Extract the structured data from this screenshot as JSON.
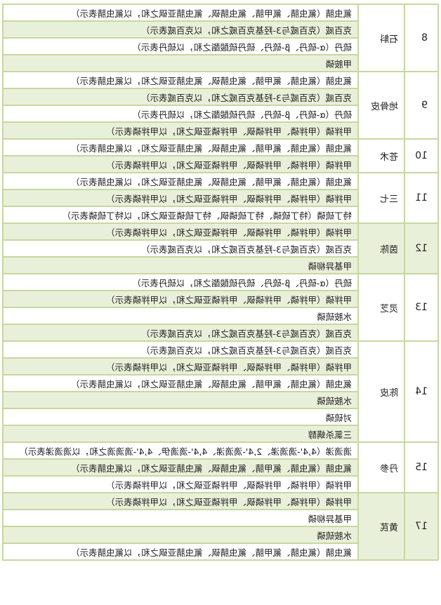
{
  "colors": {
    "stripe": "#e9f0da",
    "border": "#c6d89f"
  },
  "groups": [
    {
      "no": "8",
      "herb": "石斛",
      "items": [
        "氟虫腈（氟虫腈、氟甲腈、氟虫腈砜、氟虫腈亚砜之和，以氟虫腈表示）",
        "克百威（克百威与3-羟基克百威之和，以克百威表示）",
        "硫丹（α-硫丹、β-硫丹、硫丹硫酸酯之和，以硫丹表示）",
        "甲胺磷"
      ]
    },
    {
      "no": "9",
      "herb": "地骨皮",
      "items": [
        "氟虫腈（氟虫腈、氟甲腈、氟虫腈砜、氟虫腈亚砜之和，以氟虫腈表示）",
        "克百威（克百威与3-羟基克百威之和，以克百威表示）",
        "硫丹（α-硫丹、β-硫丹、硫丹硫酸酯之和，以硫丹表示）",
        "甲拌磷（甲拌磷、甲拌磷砜、甲拌磷亚砜之和，以甲拌磷表示）"
      ]
    },
    {
      "no": "10",
      "herb": "苍术",
      "items": [
        "氟虫腈（氟虫腈、氟甲腈、氟虫腈砜、氟虫腈亚砜之和，以氟虫腈表示）",
        "甲拌磷（甲拌磷、甲拌磷砜、甲拌磷亚砜之和，以甲拌磷表示）"
      ]
    },
    {
      "no": "11",
      "herb": "三七",
      "items": [
        "氟虫腈（氟虫腈、氟甲腈、氟虫腈砜、氟虫腈亚砜之和，以氟虫腈表示）",
        "甲拌磷（甲拌磷、甲拌磷砜、甲拌磷亚砜之和，以甲拌磷表示）",
        "特丁硫磷（特丁硫磷、特丁硫磷砜、特丁硫磷亚砜之和，以特丁硫磷表示）"
      ]
    },
    {
      "no": "12",
      "herb": "茵陈",
      "items": [
        "甲拌磷（甲拌磷、甲拌磷砜、甲拌磷亚砜之和，以甲拌磷表示）",
        "克百威（克百威与3-羟基克百威之和，以克百威表示）",
        "甲基异柳磷"
      ]
    },
    {
      "no": "13",
      "herb": "灵芝",
      "items": [
        "硫丹（α-硫丹、β-硫丹、硫丹硫酸酯之和，以硫丹表示）",
        "甲拌磷（甲拌磷、甲拌磷砜、甲拌磷亚砜之和，以甲拌磷表示）",
        "水胺硫磷",
        "克百威（克百威与3-羟基克百威之和，以克百威表示）"
      ]
    },
    {
      "no": "14",
      "herb": "陈皮",
      "items": [
        "克百威（克百威与3-羟基克百威之和，以克百威表示）",
        "甲拌磷（甲拌磷、甲拌磷砜、甲拌磷亚砜之和，以甲拌磷表示）",
        "氟虫腈（氟虫腈、氟甲腈、氟虫腈砜、氟虫腈亚砜之和，以氟虫腈表示）",
        "水胺硫磷",
        "对硫磷",
        "三氯杀螨醇"
      ]
    },
    {
      "no": "15",
      "herb": "丹参",
      "items": [
        "滴滴涕（4,4'-滴滴涕、2,4'-滴滴涕、4,4'-滴滴伊、4,4'-滴滴滴之和，以滴滴涕表示）",
        "氟虫腈（氟虫腈、氟甲腈、氟虫腈砜、氟虫腈亚砜之和，以氟虫腈表示）",
        "甲拌磷（甲拌磷、甲拌磷砜、甲拌磷亚砜之和，以甲拌磷表示）"
      ]
    },
    {
      "no": "17",
      "herb": "黄芪",
      "items": [
        "甲拌磷（甲拌磷、甲拌磷砜、甲拌磷亚砜之和，以甲拌磷表示）",
        "甲基异柳磷",
        "水胺硫磷",
        "氟虫腈（氟虫腈、氟甲腈、氟虫腈砜、氟虫腈亚砜之和，以氟虫腈表示）"
      ]
    }
  ]
}
